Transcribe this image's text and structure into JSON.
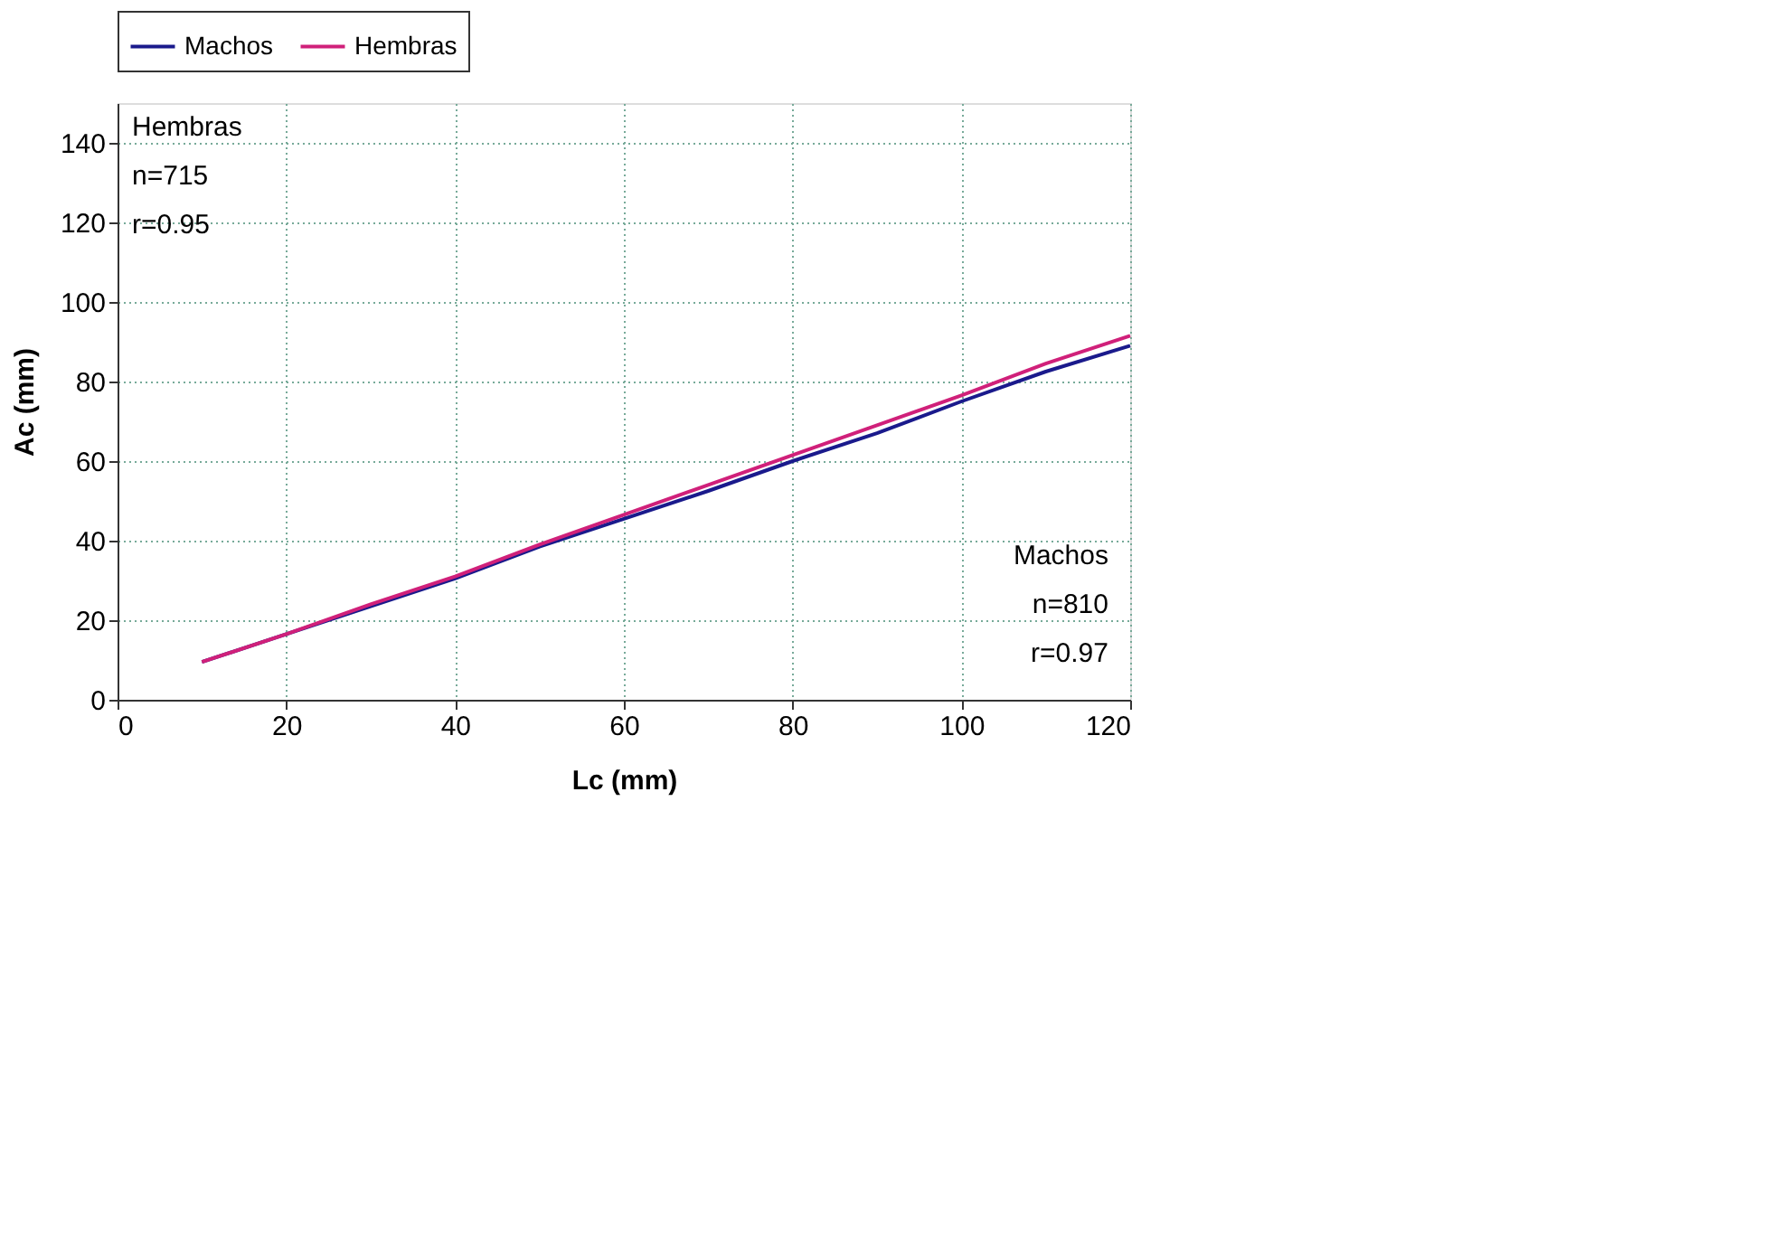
{
  "chart_data": {
    "type": "line",
    "xlabel": "Lc (mm)",
    "ylabel": "Ac (mm)",
    "x": [
      10,
      20,
      30,
      40,
      50,
      60,
      70,
      80,
      90,
      100,
      110,
      120
    ],
    "series": [
      {
        "name": "Machos",
        "color": "#1a1a8c",
        "values": [
          9.5,
          16.5,
          23.5,
          30.5,
          38.5,
          45.5,
          52.5,
          60,
          67,
          75,
          82.5,
          89
        ]
      },
      {
        "name": "Hembras",
        "color": "#d0207a",
        "values": [
          9.5,
          16.5,
          24,
          31,
          39,
          46.5,
          54,
          61.5,
          69,
          76.5,
          84.5,
          91.5
        ]
      }
    ],
    "xlim": [
      0,
      120
    ],
    "xticks": [
      0,
      20,
      40,
      60,
      80,
      100,
      120
    ],
    "ylim": [
      0,
      150
    ],
    "yticks": [
      0,
      20,
      40,
      60,
      80,
      100,
      120,
      140
    ],
    "grid": true,
    "legend": "top",
    "marker": "none",
    "line_style": "solid",
    "annotations": [
      "Hembras\nn=715\nr=0.95",
      "Machos\nn=810\nr=0.97"
    ]
  }
}
